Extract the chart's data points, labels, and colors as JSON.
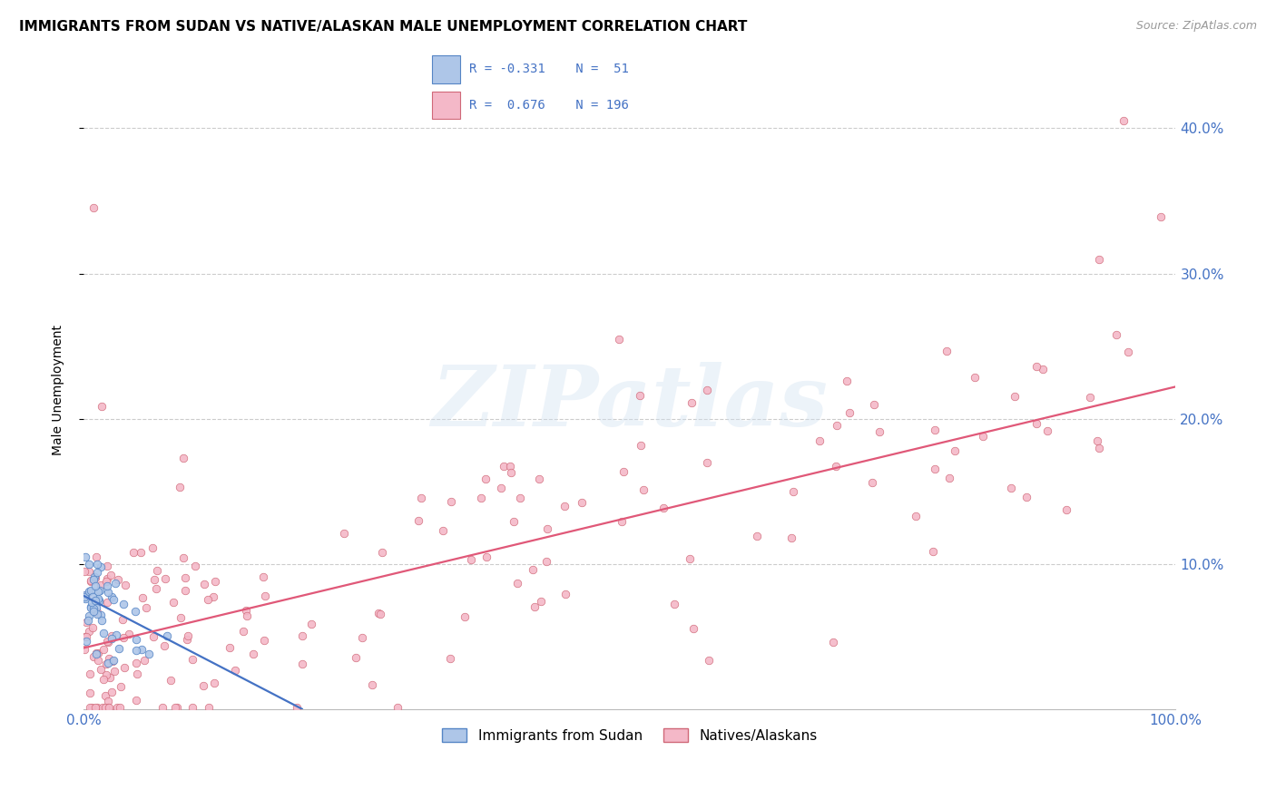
{
  "title": "IMMIGRANTS FROM SUDAN VS NATIVE/ALASKAN MALE UNEMPLOYMENT CORRELATION CHART",
  "source": "Source: ZipAtlas.com",
  "ylabel": "Male Unemployment",
  "background_color": "#ffffff",
  "watermark": "ZIPatlas",
  "legend_blue_label": "Immigrants from Sudan",
  "legend_pink_label": "Natives/Alaskans",
  "blue_R": "-0.331",
  "blue_N": "51",
  "pink_R": "0.676",
  "pink_N": "196",
  "blue_line": {
    "x0": 0.0,
    "x1": 0.2,
    "y0": 0.078,
    "y1": 0.0
  },
  "pink_line": {
    "x0": 0.0,
    "x1": 1.0,
    "y0": 0.042,
    "y1": 0.222
  },
  "xlim": [
    0.0,
    1.0
  ],
  "ylim": [
    0.0,
    0.44
  ],
  "scatter_size": 38,
  "blue_color": "#aec6e8",
  "pink_color": "#f4b8c8",
  "blue_edge_color": "#5585c5",
  "pink_edge_color": "#d06878",
  "blue_line_color": "#4472c4",
  "pink_line_color": "#e05878",
  "grid_color": "#cccccc",
  "title_fontsize": 11,
  "tick_label_color": "#4472c4",
  "ytick_positions": [
    0.1,
    0.2,
    0.3,
    0.4
  ]
}
